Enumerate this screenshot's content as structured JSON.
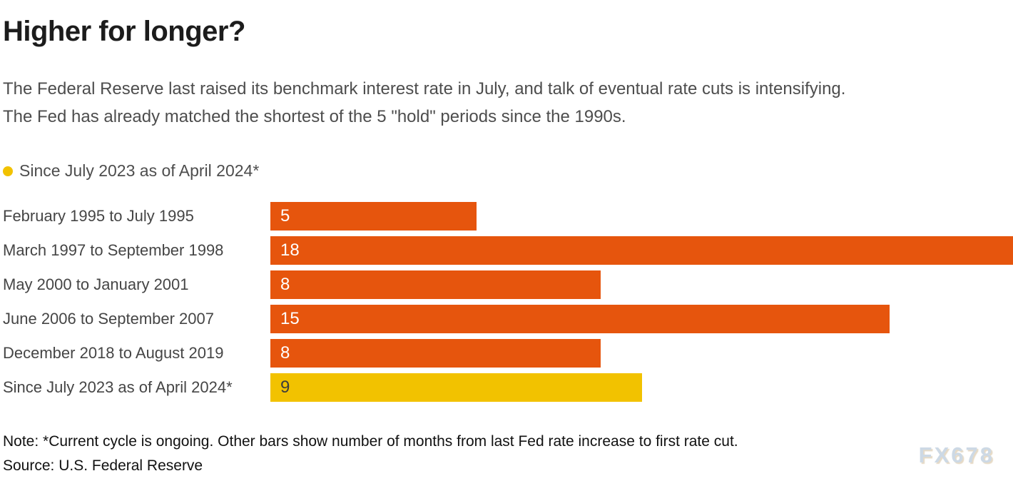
{
  "header": {
    "title": "Higher for longer?",
    "subtitle_lines": [
      "The Federal Reserve last raised its benchmark interest rate in July, and talk of eventual rate cuts is intensifying.",
      "The Fed has already matched the shortest of the 5 \"hold\" periods since the 1990s."
    ]
  },
  "legend": {
    "label": "Since July 2023 as of April 2024*",
    "color": "#f2c200"
  },
  "footer": {
    "note": "Note: *Current cycle is ongoing. Other bars show number of months from last Fed rate increase to first rate cut.",
    "source": "Source: U.S. Federal Reserve",
    "watermark": "FX678"
  },
  "colors": {
    "bar_orange": "#e6550d",
    "bar_yellow": "#f2c200",
    "title_text": "#1c1c1c",
    "body_text": "#4d4d4d",
    "watermark_text": "#cdd9e5"
  },
  "chart_data": {
    "type": "bar",
    "orientation": "horizontal",
    "title": "Higher for longer?",
    "categories": [
      "February 1995 to July 1995",
      "March 1997 to September 1998",
      "May 2000 to January 2001",
      "June 2006 to September 2007",
      "December 2018 to August 2019",
      "Since July 2023 as of April 2024*"
    ],
    "values": [
      5,
      18,
      8,
      15,
      8,
      9
    ],
    "unit": "months",
    "xlim": [
      0,
      18
    ],
    "grid": false,
    "value_labels_inside": true,
    "bar_colors": [
      "#e6550d",
      "#e6550d",
      "#e6550d",
      "#e6550d",
      "#e6550d",
      "#f2c200"
    ],
    "value_label_colors": [
      "#ffffff",
      "#ffffff",
      "#ffffff",
      "#ffffff",
      "#ffffff",
      "#3d3d3d"
    ]
  }
}
